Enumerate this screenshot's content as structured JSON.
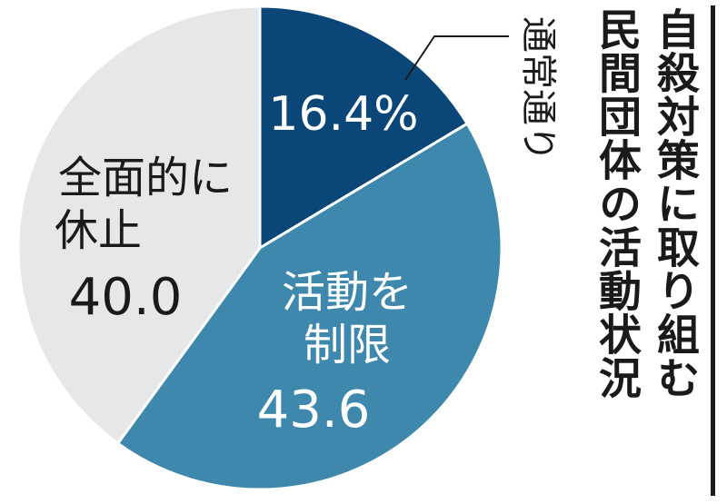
{
  "title_lines": [
    "自殺対策に取り組む",
    "民間団体の活動状況"
  ],
  "chart_data": {
    "type": "pie",
    "unit": "%",
    "slices": [
      {
        "name": "通常通り",
        "value": 16.4,
        "value_label": "16.4%",
        "color": "#0b4678",
        "text_color": "#ffffff"
      },
      {
        "name": "活動を制限",
        "value": 43.6,
        "value_label": "43.6",
        "color": "#3f88ad",
        "text_color": "#ffffff"
      },
      {
        "name": "全面的に休止",
        "value": 40.0,
        "value_label": "40.0",
        "color": "#e6e7e9",
        "text_color": "#1a1a1a"
      }
    ]
  }
}
